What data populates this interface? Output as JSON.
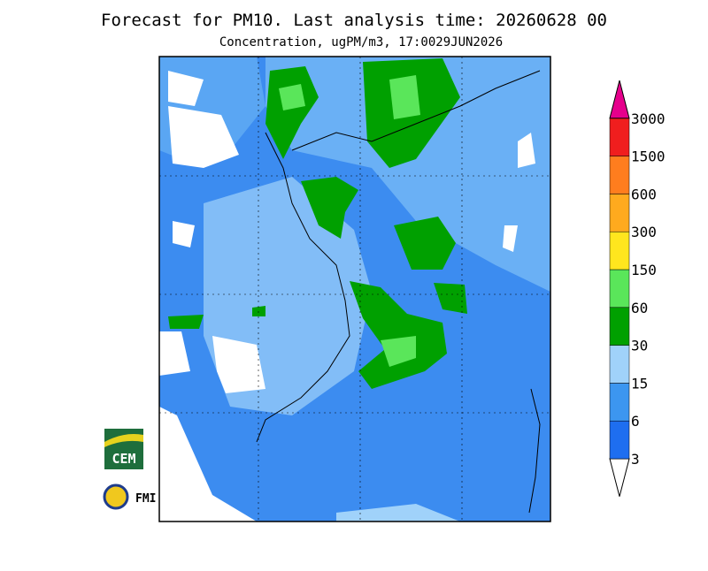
{
  "header": {
    "title": "Forecast for PM10. Last analysis time: 20260628 00",
    "subtitle": "Concentration, ugPM/m3, 17:0029JUN2026"
  },
  "colorbar": {
    "levels": [
      3,
      6,
      15,
      30,
      60,
      150,
      300,
      600,
      1500,
      3000
    ],
    "colors": [
      "#ffffff",
      "#1e6ef0",
      "#3c96f0",
      "#a0d2fa",
      "#00a000",
      "#5ae65a",
      "#ffe61e",
      "#ffaa1e",
      "#ff7d1e",
      "#f01e1e",
      "#e6008c"
    ]
  },
  "logos": {
    "cem": "CEM",
    "fmi": "FMI"
  }
}
